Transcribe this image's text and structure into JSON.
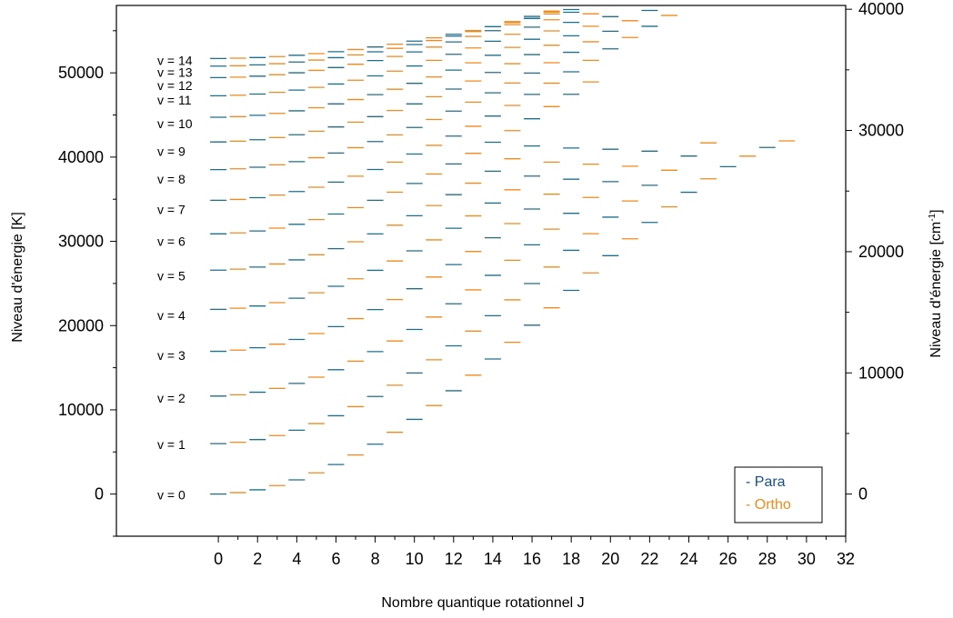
{
  "chart_data": {
    "type": "scatter",
    "title": "",
    "xlabel": "Nombre quantique rotationnel J",
    "ylabel_left": "Niveau d'énergie [K]",
    "ylabel_right_base": "Niveau d'énergie [cm",
    "ylabel_right_sup": "-1",
    "ylabel_right_close": "]",
    "xlim": [
      -5.2,
      32
    ],
    "ylim_left": [
      -5000,
      58000
    ],
    "ylim_right_cm": [
      -3475,
      40313
    ],
    "x_ticks": [
      0,
      2,
      4,
      6,
      8,
      10,
      12,
      14,
      16,
      18,
      20,
      22,
      24,
      26,
      28,
      30,
      32
    ],
    "y_ticks_left": [
      0,
      10000,
      20000,
      30000,
      40000,
      50000
    ],
    "y_ticks_right": [
      0,
      10000,
      20000,
      30000,
      40000
    ],
    "grid": false,
    "legend_position": "bottom-right",
    "colors": {
      "para": "#1f6f8b",
      "ortho": "#f08a1c",
      "legend_para_text": "#1a4e8a",
      "legend_ortho_text": "#f08a1c"
    },
    "legend": [
      {
        "name": "- Para",
        "color": "#1a4e8a"
      },
      {
        "name": "- Ortho",
        "color": "#f08a1c"
      }
    ],
    "vibrational_levels": [
      {
        "label": "v = 0",
        "label_y": 0,
        "min_energy": 0,
        "max_J": 29
      },
      {
        "label": "v = 1",
        "label_y": 6000,
        "min_energy": 5987,
        "max_J": 25
      },
      {
        "label": "v = 2",
        "label_y": 11500,
        "min_energy": 11635,
        "max_J": 22
      },
      {
        "label": "v = 3",
        "label_y": 16600,
        "min_energy": 16948,
        "max_J": 20
      },
      {
        "label": "v = 4",
        "label_y": 21300,
        "min_energy": 21929,
        "max_J": 18
      },
      {
        "label": "v = 5",
        "label_y": 26000,
        "min_energy": 26578,
        "max_J": 16
      },
      {
        "label": "v = 6",
        "label_y": 30100,
        "min_energy": 30891,
        "max_J": 19
      },
      {
        "label": "v = 7",
        "label_y": 33900,
        "min_energy": 34871,
        "max_J": 23
      },
      {
        "label": "v = 8",
        "label_y": 37500,
        "min_energy": 38511,
        "max_J": 25
      },
      {
        "label": "v = 9",
        "label_y": 40800,
        "min_energy": 41800,
        "max_J": 26
      },
      {
        "label": "v = 10",
        "label_y": 44100,
        "min_energy": 44730,
        "max_J": 27
      },
      {
        "label": "v = 11",
        "label_y": 46900,
        "min_energy": 47282,
        "max_J": 28
      },
      {
        "label": "v = 12",
        "label_y": 48600,
        "min_energy": 49434,
        "max_J": 29
      },
      {
        "label": "v = 13",
        "label_y": 50200,
        "min_energy": 50800,
        "max_J": 30
      },
      {
        "label": "v = 14",
        "label_y": 51600,
        "min_energy": 51700,
        "max_J": 31
      }
    ]
  }
}
